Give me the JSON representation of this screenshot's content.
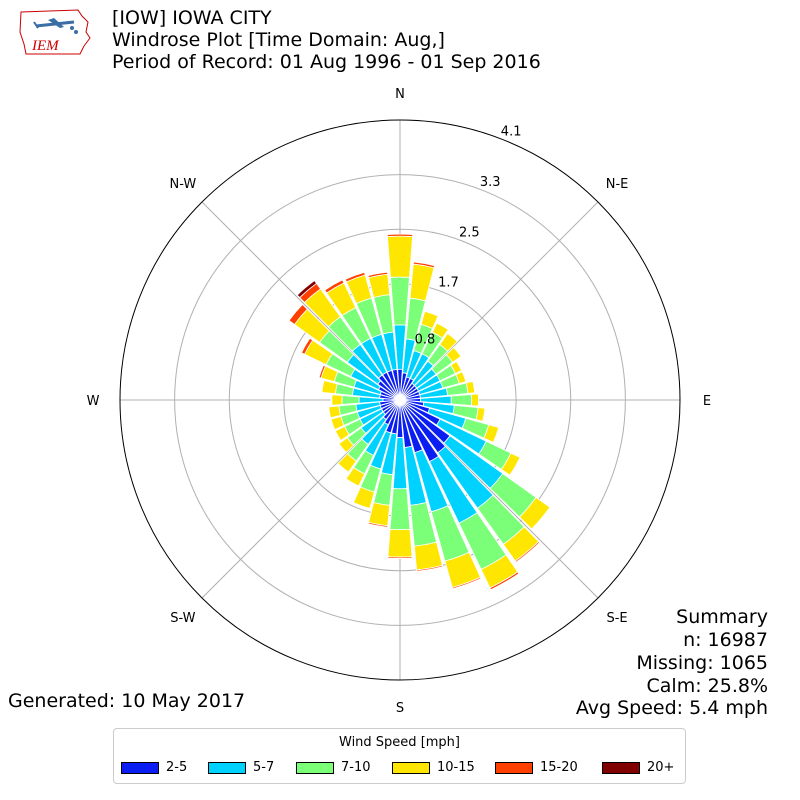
{
  "header": {
    "logo_text": "IEM",
    "title_lines": [
      "[IOW] IOWA CITY",
      "Windrose Plot [Time Domain: Aug,]",
      "Period of Record: 01 Aug 1996 - 01 Sep 2016"
    ]
  },
  "summary": {
    "lines": [
      "Summary",
      "n: 16987",
      "Missing: 1065",
      "Calm: 25.8%",
      "Avg Speed: 5.4 mph"
    ]
  },
  "footer": {
    "generated": "Generated: 10 May 2017"
  },
  "legend": {
    "title": "Wind Speed [mph]",
    "items": [
      {
        "label": "2-5",
        "color": "#0a1ef2"
      },
      {
        "label": "5-7",
        "color": "#00d2ff"
      },
      {
        "label": "7-10",
        "color": "#7cff78"
      },
      {
        "label": "10-15",
        "color": "#ffe600"
      },
      {
        "label": "15-20",
        "color": "#ff4000"
      },
      {
        "label": "20+",
        "color": "#800000"
      }
    ]
  },
  "chart_data": {
    "type": "windrose",
    "units": "%",
    "radial_max": 4.1,
    "radial_ticks": [
      0.8,
      1.7,
      2.5,
      3.3,
      4.1
    ],
    "radial_tick_labels": [
      "0.8",
      "1.7",
      "2.5",
      "3.3",
      "4.1"
    ],
    "direction_labels": [
      "N",
      "N-E",
      "E",
      "S-E",
      "S",
      "S-W",
      "W",
      "N-W"
    ],
    "bin_width_deg": 10,
    "speed_bins": [
      "2-5",
      "5-7",
      "7-10",
      "10-15",
      "15-20",
      "20+"
    ],
    "colors": [
      "#0a1ef2",
      "#00d2ff",
      "#7cff78",
      "#ffe600",
      "#ff4000",
      "#800000"
    ],
    "sectors": [
      {
        "dir": 0,
        "values": [
          0.45,
          0.65,
          0.7,
          0.6,
          0.03,
          0.0
        ]
      },
      {
        "dir": 10,
        "values": [
          0.4,
          0.5,
          0.6,
          0.5,
          0.03,
          0.0
        ]
      },
      {
        "dir": 20,
        "values": [
          0.35,
          0.4,
          0.4,
          0.2,
          0.01,
          0.0
        ]
      },
      {
        "dir": 30,
        "values": [
          0.35,
          0.4,
          0.35,
          0.15,
          0.01,
          0.0
        ]
      },
      {
        "dir": 40,
        "values": [
          0.3,
          0.4,
          0.3,
          0.2,
          0.01,
          0.0
        ]
      },
      {
        "dir": 50,
        "values": [
          0.3,
          0.35,
          0.3,
          0.15,
          0.01,
          0.0
        ]
      },
      {
        "dir": 60,
        "values": [
          0.3,
          0.35,
          0.25,
          0.1,
          0.0,
          0.0
        ]
      },
      {
        "dir": 70,
        "values": [
          0.3,
          0.35,
          0.25,
          0.1,
          0.0,
          0.0
        ]
      },
      {
        "dir": 80,
        "values": [
          0.3,
          0.4,
          0.3,
          0.1,
          0.0,
          0.0
        ]
      },
      {
        "dir": 90,
        "values": [
          0.3,
          0.45,
          0.3,
          0.1,
          0.0,
          0.0
        ]
      },
      {
        "dir": 100,
        "values": [
          0.35,
          0.45,
          0.35,
          0.1,
          0.0,
          0.0
        ]
      },
      {
        "dir": 110,
        "values": [
          0.45,
          0.55,
          0.35,
          0.15,
          0.0,
          0.0
        ]
      },
      {
        "dir": 120,
        "values": [
          0.65,
          0.75,
          0.4,
          0.15,
          0.01,
          0.0
        ]
      },
      {
        "dir": 130,
        "values": [
          0.9,
          0.95,
          0.6,
          0.25,
          0.01,
          0.0
        ]
      },
      {
        "dir": 140,
        "values": [
          0.95,
          1.0,
          0.65,
          0.3,
          0.02,
          0.0
        ]
      },
      {
        "dir": 150,
        "values": [
          1.0,
          1.0,
          0.75,
          0.3,
          0.03,
          0.0
        ]
      },
      {
        "dir": 160,
        "values": [
          0.8,
          0.9,
          0.75,
          0.4,
          0.02,
          0.0
        ]
      },
      {
        "dir": 170,
        "values": [
          0.7,
          0.85,
          0.6,
          0.35,
          0.02,
          0.0
        ]
      },
      {
        "dir": 180,
        "values": [
          0.55,
          0.75,
          0.6,
          0.4,
          0.02,
          0.0
        ]
      },
      {
        "dir": 190,
        "values": [
          0.5,
          0.6,
          0.45,
          0.3,
          0.02,
          0.0
        ]
      },
      {
        "dir": 200,
        "values": [
          0.5,
          0.55,
          0.35,
          0.25,
          0.01,
          0.0
        ]
      },
      {
        "dir": 210,
        "values": [
          0.4,
          0.5,
          0.3,
          0.2,
          0.01,
          0.0
        ]
      },
      {
        "dir": 220,
        "values": [
          0.35,
          0.45,
          0.3,
          0.2,
          0.01,
          0.0
        ]
      },
      {
        "dir": 230,
        "values": [
          0.3,
          0.4,
          0.25,
          0.15,
          0.0,
          0.0
        ]
      },
      {
        "dir": 240,
        "values": [
          0.3,
          0.35,
          0.25,
          0.15,
          0.0,
          0.0
        ]
      },
      {
        "dir": 250,
        "values": [
          0.3,
          0.35,
          0.25,
          0.15,
          0.01,
          0.0
        ]
      },
      {
        "dir": 260,
        "values": [
          0.3,
          0.35,
          0.25,
          0.15,
          0.01,
          0.0
        ]
      },
      {
        "dir": 270,
        "values": [
          0.25,
          0.35,
          0.25,
          0.15,
          0.01,
          0.0
        ]
      },
      {
        "dir": 280,
        "values": [
          0.3,
          0.4,
          0.25,
          0.2,
          0.01,
          0.0
        ]
      },
      {
        "dir": 290,
        "values": [
          0.3,
          0.4,
          0.3,
          0.2,
          0.03,
          0.0
        ]
      },
      {
        "dir": 300,
        "values": [
          0.35,
          0.45,
          0.4,
          0.35,
          0.05,
          0.0
        ]
      },
      {
        "dir": 310,
        "values": [
          0.4,
          0.55,
          0.5,
          0.45,
          0.1,
          0.01
        ]
      },
      {
        "dir": 320,
        "values": [
          0.45,
          0.55,
          0.5,
          0.5,
          0.1,
          0.05
        ]
      },
      {
        "dir": 330,
        "values": [
          0.45,
          0.55,
          0.5,
          0.4,
          0.05,
          0.0
        ]
      },
      {
        "dir": 340,
        "values": [
          0.45,
          0.55,
          0.55,
          0.35,
          0.04,
          0.0
        ]
      },
      {
        "dir": 350,
        "values": [
          0.45,
          0.55,
          0.55,
          0.3,
          0.03,
          0.0
        ]
      }
    ]
  }
}
